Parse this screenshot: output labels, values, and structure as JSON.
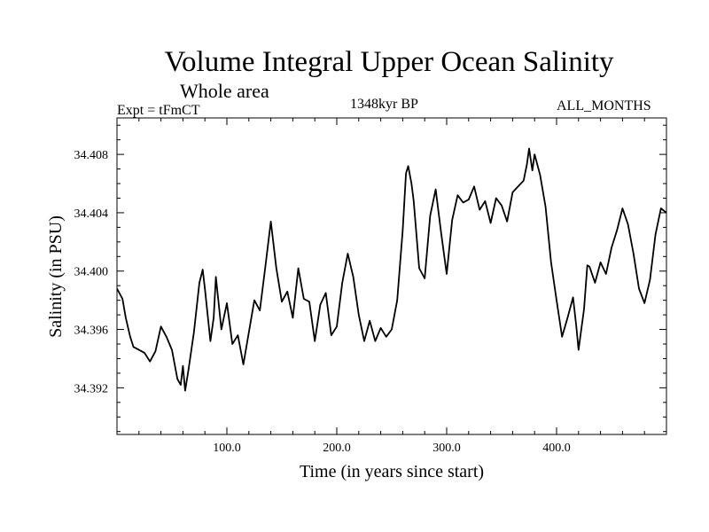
{
  "chart_data": {
    "type": "line",
    "title": "Volume Integral Upper Ocean Salinity",
    "subtitle": "Whole area",
    "experiment": "Expt = tFmCT",
    "period": "1348kyr BP",
    "months": "ALL_MONTHS",
    "xlabel": "Time (in years since start)",
    "ylabel": "Salinity (in PSU)",
    "xlim": [
      0,
      500
    ],
    "ylim": [
      34.3888,
      34.4105
    ],
    "xticks": [
      100,
      200,
      300,
      400
    ],
    "xtick_labels": [
      "100.0",
      "200.0",
      "300.0",
      "400.0"
    ],
    "yticks": [
      34.392,
      34.396,
      34.4,
      34.404,
      34.408
    ],
    "ytick_labels": [
      "34.392",
      "34.396",
      "34.400",
      "34.404",
      "34.408"
    ],
    "series": [
      {
        "name": "Salinity",
        "x": [
          0,
          5,
          8,
          12,
          15,
          20,
          25,
          30,
          35,
          40,
          45,
          50,
          55,
          58,
          60,
          62,
          65,
          70,
          75,
          78,
          80,
          85,
          88,
          90,
          95,
          100,
          105,
          110,
          115,
          120,
          125,
          130,
          135,
          140,
          145,
          150,
          155,
          160,
          165,
          170,
          175,
          180,
          185,
          190,
          195,
          200,
          205,
          210,
          215,
          220,
          225,
          230,
          235,
          240,
          245,
          250,
          255,
          260,
          263,
          265,
          268,
          270,
          275,
          280,
          285,
          290,
          295,
          300,
          305,
          310,
          315,
          320,
          325,
          330,
          335,
          340,
          345,
          350,
          355,
          360,
          365,
          370,
          373,
          375,
          378,
          380,
          385,
          390,
          395,
          400,
          405,
          410,
          415,
          418,
          420,
          425,
          428,
          430,
          435,
          440,
          445,
          450,
          455,
          460,
          465,
          470,
          475,
          480,
          485,
          490,
          495,
          500
        ],
        "values": [
          34.3988,
          34.3981,
          34.3968,
          34.3955,
          34.3948,
          34.3946,
          34.3944,
          34.3938,
          34.3945,
          34.3962,
          34.3955,
          34.3946,
          34.3926,
          34.3922,
          34.3935,
          34.3918,
          34.3932,
          34.3958,
          34.3992,
          34.4001,
          34.3988,
          34.3952,
          34.3968,
          34.3996,
          34.396,
          34.3978,
          34.395,
          34.3956,
          34.3936,
          34.3958,
          34.398,
          34.3973,
          34.4003,
          34.4034,
          34.4002,
          34.3979,
          34.3986,
          34.3968,
          34.4002,
          34.3981,
          34.3979,
          34.3952,
          34.3977,
          34.3985,
          34.3956,
          34.3962,
          34.3992,
          34.4012,
          34.3996,
          34.397,
          34.3952,
          34.3966,
          34.3952,
          34.3961,
          34.3955,
          34.396,
          34.398,
          34.4028,
          34.4067,
          34.4072,
          34.406,
          34.4048,
          34.4002,
          34.3995,
          34.4038,
          34.4056,
          34.4026,
          34.3998,
          34.4035,
          34.4052,
          34.4047,
          34.4049,
          34.4058,
          34.4042,
          34.4048,
          34.4033,
          34.405,
          34.4045,
          34.4034,
          34.4054,
          34.4058,
          34.4062,
          34.4073,
          34.4084,
          34.4069,
          34.408,
          34.4066,
          34.4044,
          34.4006,
          34.398,
          34.3955,
          34.3968,
          34.3982,
          34.3962,
          34.3946,
          34.3974,
          34.4004,
          34.4003,
          34.3992,
          34.4006,
          34.3998,
          34.4016,
          34.4028,
          34.4043,
          34.4032,
          34.4012,
          34.3988,
          34.3978,
          34.3994,
          34.4025,
          34.4043,
          34.404
        ]
      }
    ]
  }
}
